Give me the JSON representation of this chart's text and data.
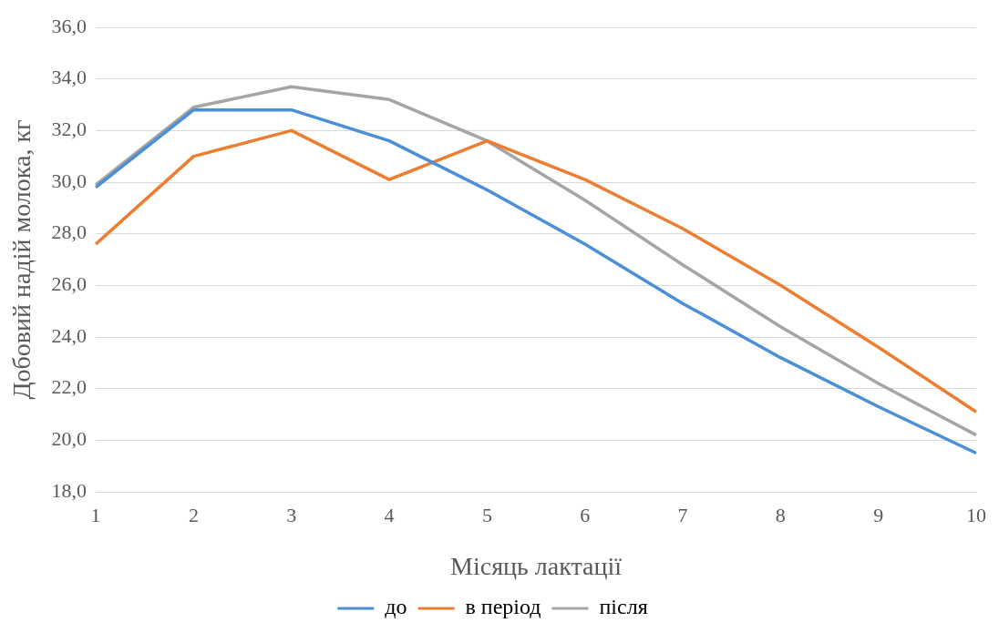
{
  "chart_data": {
    "type": "line",
    "xlabel": "Місяць лактації",
    "ylabel": "Добовий надій молока, кг",
    "categories": [
      "1",
      "2",
      "3",
      "4",
      "5",
      "6",
      "7",
      "8",
      "9",
      "10"
    ],
    "series": [
      {
        "name": "до",
        "color": "#4a8fd8",
        "values": [
          29.8,
          32.8,
          32.8,
          31.6,
          29.7,
          27.6,
          25.3,
          23.2,
          21.3,
          19.5
        ]
      },
      {
        "name": "в період",
        "color": "#ed7d31",
        "values": [
          27.6,
          31.0,
          32.0,
          30.1,
          31.6,
          30.1,
          28.2,
          26.0,
          23.6,
          21.1
        ]
      },
      {
        "name": "після",
        "color": "#a5a5a5",
        "values": [
          29.9,
          32.9,
          33.7,
          33.2,
          31.6,
          29.3,
          26.8,
          24.4,
          22.2,
          20.2
        ]
      }
    ],
    "ylim": [
      18,
      36
    ],
    "yticks": [
      {
        "value": 18,
        "label": "18,0"
      },
      {
        "value": 20,
        "label": "20,0"
      },
      {
        "value": 22,
        "label": "22,0"
      },
      {
        "value": 24,
        "label": "24,0"
      },
      {
        "value": 26,
        "label": "26,0"
      },
      {
        "value": 28,
        "label": "28,0"
      },
      {
        "value": 30,
        "label": "30,0"
      },
      {
        "value": 32,
        "label": "32,0"
      },
      {
        "value": 34,
        "label": "34,0"
      },
      {
        "value": 36,
        "label": "36,0"
      }
    ],
    "grid": "y",
    "legend": "bottom",
    "marker": "none",
    "line_style": "solid"
  }
}
